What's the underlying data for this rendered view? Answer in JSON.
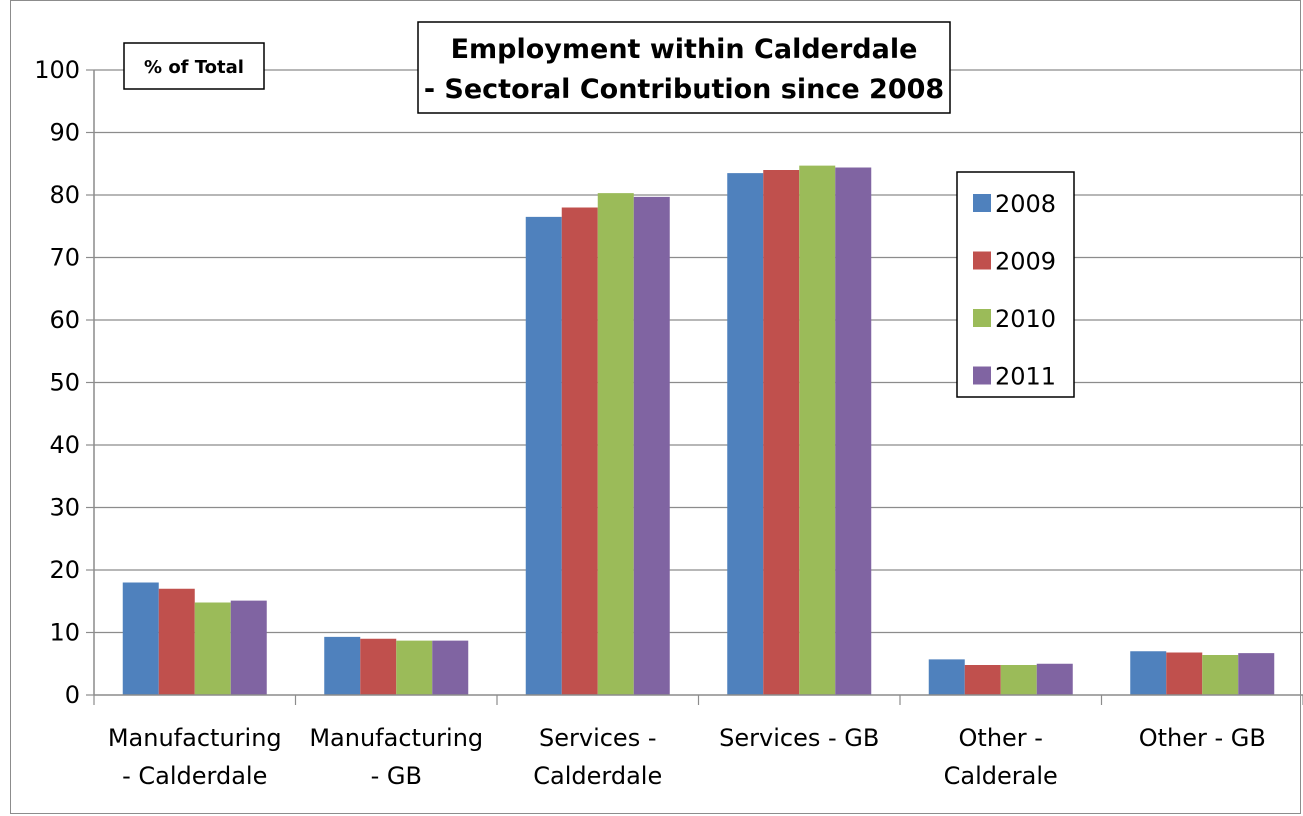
{
  "chart_data": {
    "type": "bar",
    "title_lines": [
      "Employment within Calderdale",
      "- Sectoral Contribution since 2008"
    ],
    "ylabel": "% of Total",
    "xlabel": "",
    "ylim": [
      0,
      100
    ],
    "yticks": [
      0,
      10,
      20,
      30,
      40,
      50,
      60,
      70,
      80,
      90,
      100
    ],
    "grid": true,
    "legend_position": "right",
    "categories": [
      [
        "Manufacturing",
        "- Calderdale"
      ],
      [
        "Manufacturing",
        "- GB"
      ],
      [
        "Services -",
        "Calderdale"
      ],
      [
        "Services - GB"
      ],
      [
        "Other -",
        "Calderale"
      ],
      [
        "Other - GB"
      ]
    ],
    "series": [
      {
        "name": "2008",
        "color": "#4f81bd",
        "values": [
          18.0,
          9.3,
          76.5,
          83.5,
          5.7,
          7.0
        ]
      },
      {
        "name": "2009",
        "color": "#c0504d",
        "values": [
          17.0,
          9.0,
          78.0,
          84.0,
          4.8,
          6.8
        ]
      },
      {
        "name": "2010",
        "color": "#9bbb59",
        "values": [
          14.8,
          8.7,
          80.3,
          84.7,
          4.8,
          6.4
        ]
      },
      {
        "name": "2011",
        "color": "#8064a2",
        "values": [
          15.1,
          8.7,
          79.7,
          84.4,
          5.0,
          6.7
        ]
      }
    ]
  }
}
